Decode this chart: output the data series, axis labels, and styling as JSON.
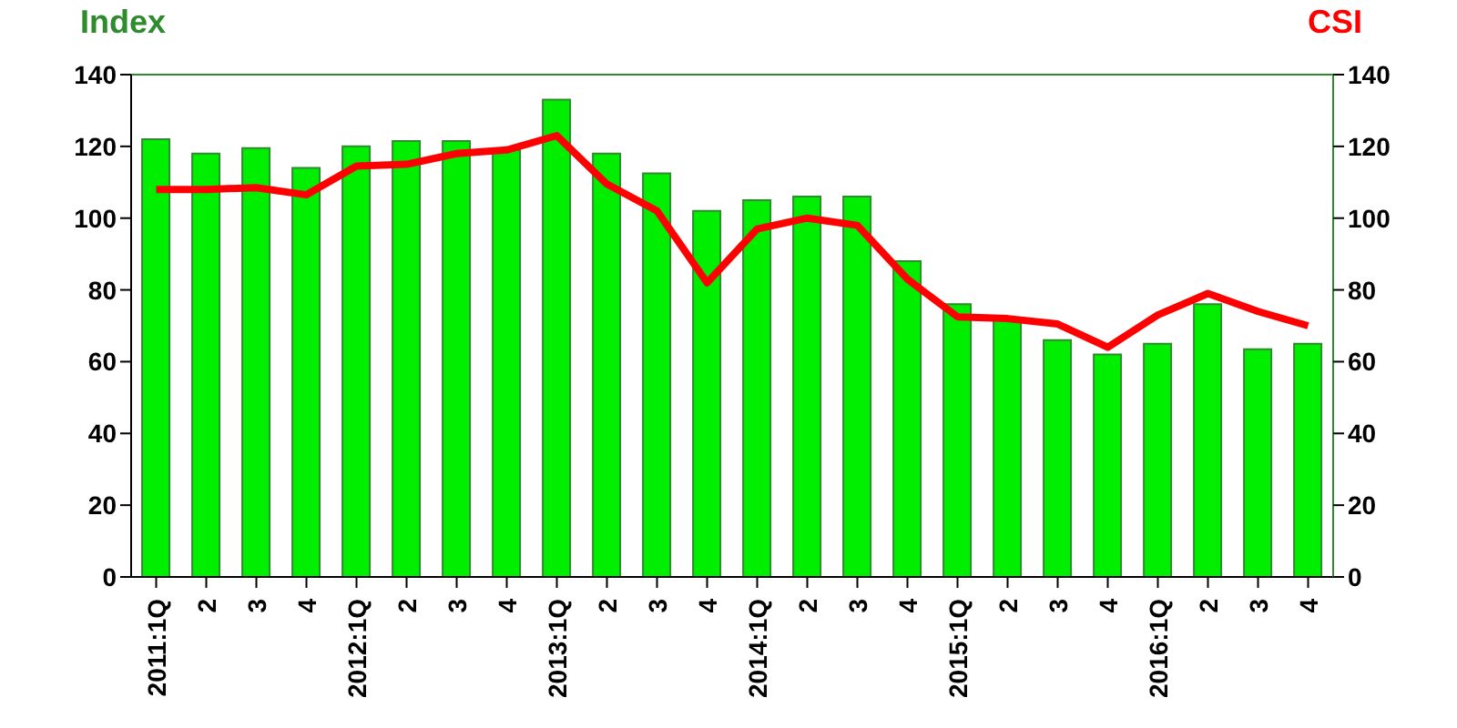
{
  "chart_data": {
    "type": "bar",
    "ylabel": "Index",
    "y2label": "CSI",
    "categories": [
      "2011:1Q",
      "2",
      "3",
      "4",
      "2012:1Q",
      "2",
      "3",
      "4",
      "2013:1Q",
      "2",
      "3",
      "4",
      "2014:1Q",
      "2",
      "3",
      "4",
      "2015:1Q",
      "2",
      "3",
      "4",
      "2016:1Q",
      "2",
      "3",
      "4"
    ],
    "series": [
      {
        "color": "#00ee00",
        "values": [
          122,
          118,
          119.5,
          114,
          120,
          121.5,
          121.5,
          119,
          133,
          118,
          112.5,
          102,
          105,
          106,
          106,
          88,
          76,
          72,
          66,
          62,
          65,
          76,
          63.5,
          65
        ]
      },
      {
        "type": "line",
        "axis": "y2",
        "color": "#ff0000",
        "values": [
          108,
          108,
          108.5,
          106.5,
          114.5,
          115,
          118,
          119,
          123,
          109.5,
          102,
          82,
          97,
          100,
          98,
          83,
          72.5,
          72,
          70.5,
          64,
          73,
          79,
          74,
          70
        ]
      }
    ],
    "ylim": [
      0,
      140
    ],
    "yticks": [
      0,
      20,
      40,
      60,
      80,
      100,
      120,
      140
    ],
    "y2lim": [
      0,
      140
    ],
    "y2ticks": [
      0,
      20,
      40,
      60,
      80,
      100,
      120,
      140
    ],
    "grid": false,
    "legend": false,
    "marker": "none",
    "line_style": "solid"
  }
}
